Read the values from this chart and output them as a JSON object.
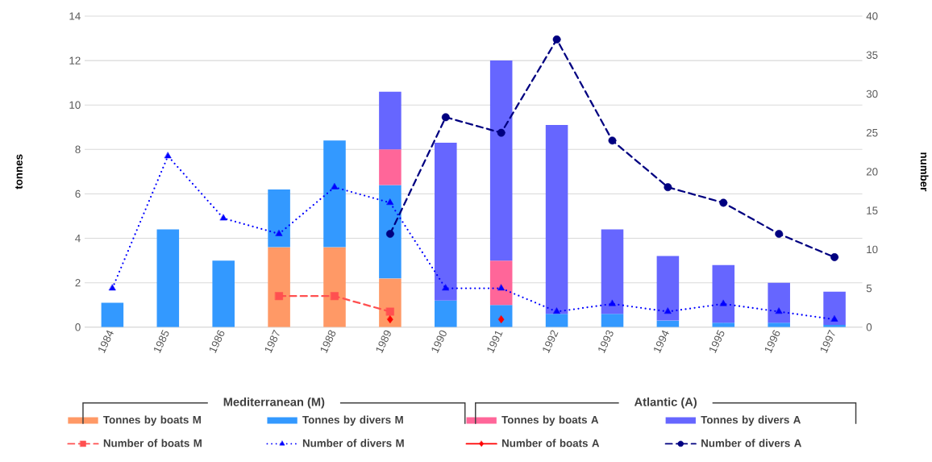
{
  "chart_data": {
    "type": "bar",
    "stacked": true,
    "categories": [
      "1984",
      "1985",
      "1986",
      "1987",
      "1988",
      "1989",
      "1990",
      "1991",
      "1992",
      "1993",
      "1994",
      "1995",
      "1996",
      "1997"
    ],
    "ylabel": "tonnes",
    "y2label": "number",
    "ylim": [
      0,
      14
    ],
    "yticks": [
      0,
      2,
      4,
      6,
      8,
      10,
      12,
      14
    ],
    "y2lim": [
      0,
      40
    ],
    "y2ticks": [
      0,
      5,
      10,
      15,
      20,
      25,
      30,
      35,
      40
    ],
    "grid": "y",
    "legend": "bottom",
    "annotations": [
      "Mediterranean (M)",
      "Atlantic (A)"
    ],
    "series": [
      {
        "name": "Tonnes by boats M",
        "color": "#ff9966",
        "values": [
          null,
          null,
          null,
          3.6,
          3.6,
          2.2,
          null,
          null,
          null,
          null,
          null,
          null,
          null,
          null
        ]
      },
      {
        "name": "Tonnes by divers M",
        "color": "#3399ff",
        "values": [
          1.1,
          4.4,
          3.0,
          2.6,
          4.8,
          4.2,
          1.2,
          1.0,
          0.6,
          0.6,
          0.3,
          0.2,
          0.2,
          0.1
        ]
      },
      {
        "name": "Tonnes by boats A",
        "color": "#ff6699",
        "values": [
          null,
          null,
          null,
          null,
          null,
          1.6,
          null,
          2.0,
          null,
          null,
          null,
          null,
          null,
          null
        ]
      },
      {
        "name": "Tonnes by divers A",
        "color": "#6666ff",
        "values": [
          null,
          null,
          null,
          null,
          null,
          2.6,
          7.1,
          9.0,
          8.5,
          3.8,
          2.9,
          2.6,
          1.8,
          1.5
        ]
      },
      {
        "name": "Number of boats M",
        "type": "line",
        "axis": "y2",
        "color": "#ff5050",
        "marker": "square",
        "line_style": "dashed",
        "values": [
          null,
          null,
          null,
          4,
          4,
          2,
          null,
          null,
          null,
          null,
          null,
          null,
          null,
          null
        ]
      },
      {
        "name": "Number of divers M",
        "type": "line",
        "axis": "y2",
        "color": "#0000ff",
        "marker": "triangle",
        "line_style": "dotted",
        "values": [
          5,
          22,
          14,
          12,
          18,
          16,
          5,
          5,
          2,
          3,
          2,
          3,
          2,
          1
        ]
      },
      {
        "name": "Number of boats A",
        "type": "scatter",
        "axis": "y2",
        "color": "#ff0000",
        "marker": "diamond",
        "line_style": "solid",
        "values": [
          null,
          null,
          null,
          null,
          null,
          1,
          null,
          1,
          null,
          null,
          null,
          null,
          null,
          null
        ]
      },
      {
        "name": "Number of divers A",
        "type": "line",
        "axis": "y2",
        "color": "#000080",
        "marker": "circle",
        "line_style": "dashed",
        "values": [
          null,
          null,
          null,
          null,
          null,
          12,
          27,
          25,
          37,
          24,
          18,
          16,
          12,
          9
        ]
      }
    ]
  }
}
